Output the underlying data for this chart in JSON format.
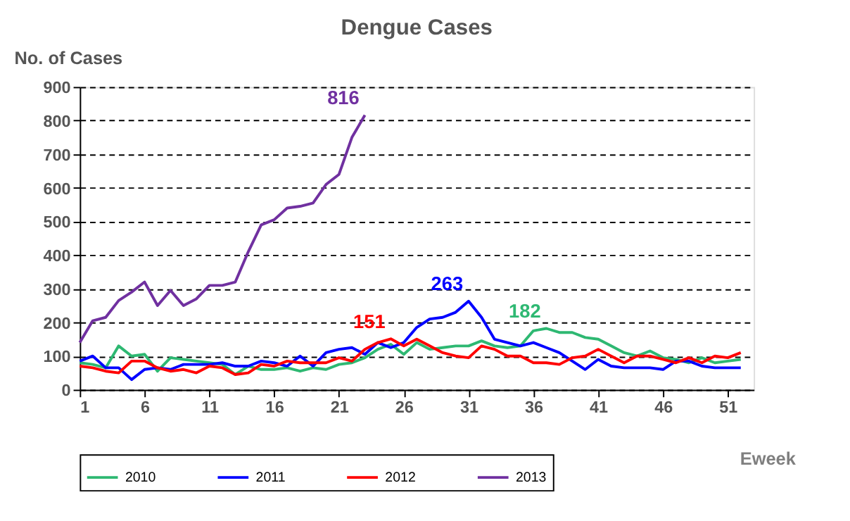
{
  "chart_data": {
    "type": "line",
    "title": "Dengue Cases",
    "ylabel": "No. of Cases",
    "xlabel": "Eweek",
    "x": [
      1,
      2,
      3,
      4,
      5,
      6,
      7,
      8,
      9,
      10,
      11,
      12,
      13,
      14,
      15,
      16,
      17,
      18,
      19,
      20,
      21,
      22,
      23,
      24,
      25,
      26,
      27,
      28,
      29,
      30,
      31,
      32,
      33,
      34,
      35,
      36,
      37,
      38,
      39,
      40,
      41,
      42,
      43,
      44,
      45,
      46,
      47,
      48,
      49,
      50,
      51,
      52
    ],
    "xlim": [
      1,
      53
    ],
    "xticks": [
      1,
      6,
      11,
      16,
      21,
      26,
      31,
      36,
      41,
      46,
      51
    ],
    "ylim": [
      0,
      900
    ],
    "yticks": [
      0,
      100,
      200,
      300,
      400,
      500,
      600,
      700,
      800,
      900
    ],
    "grid": "y",
    "legend": "bottom",
    "line_style": "solid",
    "marker": "none",
    "series": [
      {
        "name": "2010",
        "color": "#2eb872",
        "values": [
          80,
          75,
          65,
          130,
          100,
          105,
          55,
          95,
          90,
          85,
          80,
          75,
          45,
          70,
          60,
          60,
          65,
          55,
          65,
          60,
          75,
          80,
          95,
          120,
          135,
          105,
          140,
          120,
          125,
          130,
          130,
          145,
          130,
          125,
          130,
          175,
          182,
          170,
          170,
          155,
          150,
          130,
          110,
          100,
          115,
          95,
          90,
          80,
          95,
          80,
          85,
          90
        ]
      },
      {
        "name": "2011",
        "color": "#0000ff",
        "values": [
          85,
          100,
          65,
          65,
          30,
          60,
          65,
          60,
          75,
          75,
          75,
          80,
          70,
          70,
          85,
          80,
          70,
          100,
          70,
          110,
          120,
          125,
          105,
          140,
          125,
          140,
          185,
          210,
          215,
          230,
          263,
          215,
          150,
          140,
          130,
          140,
          125,
          110,
          85,
          60,
          90,
          70,
          65,
          65,
          65,
          60,
          85,
          85,
          70,
          65,
          65,
          65
        ]
      },
      {
        "name": "2012",
        "color": "#ff0000",
        "values": [
          70,
          65,
          55,
          50,
          85,
          85,
          65,
          55,
          60,
          50,
          70,
          65,
          45,
          50,
          75,
          70,
          85,
          80,
          80,
          80,
          95,
          85,
          120,
          140,
          151,
          130,
          150,
          130,
          110,
          100,
          95,
          130,
          120,
          100,
          100,
          80,
          80,
          75,
          95,
          100,
          120,
          100,
          80,
          100,
          100,
          90,
          80,
          95,
          80,
          100,
          95,
          110
        ]
      },
      {
        "name": "2013",
        "color": "#7030a0",
        "values": [
          140,
          205,
          215,
          265,
          290,
          320,
          250,
          295,
          250,
          270,
          310,
          310,
          320,
          410,
          490,
          505,
          540,
          545,
          555,
          610,
          640,
          750,
          816,
          null,
          null,
          null,
          null,
          null,
          null,
          null,
          null,
          null,
          null,
          null,
          null,
          null,
          null,
          null,
          null,
          null,
          null,
          null,
          null,
          null,
          null,
          null,
          null,
          null,
          null,
          null,
          null,
          null
        ]
      }
    ],
    "annotations": [
      {
        "text": "816",
        "x": 23,
        "y": 816
      },
      {
        "text": "151",
        "x": 25,
        "y": 151
      },
      {
        "text": "263",
        "x": 31,
        "y": 263
      },
      {
        "text": "182",
        "x": 37,
        "y": 182
      }
    ]
  }
}
